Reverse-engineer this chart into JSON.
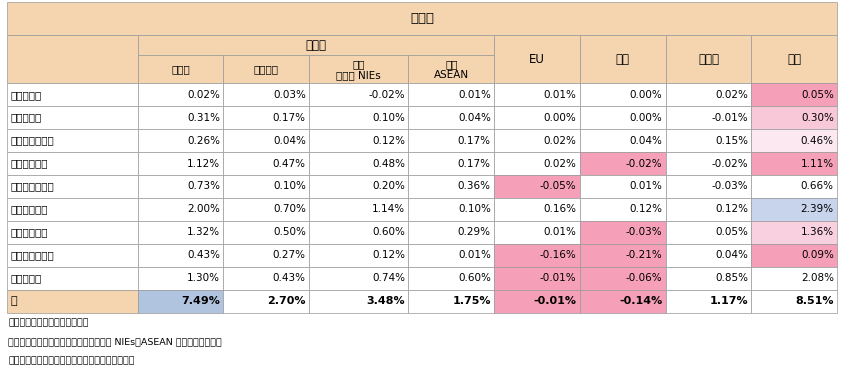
{
  "title": "寄与度",
  "rows": [
    [
      "１．食料品",
      "0.02%",
      "0.03%",
      "-0.02%",
      "0.01%",
      "0.01%",
      "0.00%",
      "0.02%",
      "0.05%"
    ],
    [
      "２．原料品",
      "0.31%",
      "0.17%",
      "0.10%",
      "0.04%",
      "0.00%",
      "0.00%",
      "-0.01%",
      "0.30%"
    ],
    [
      "３．鉱物性燃料",
      "0.26%",
      "0.04%",
      "0.12%",
      "0.17%",
      "0.02%",
      "0.04%",
      "0.15%",
      "0.46%"
    ],
    [
      "４．化学製品",
      "1.12%",
      "0.47%",
      "0.48%",
      "0.17%",
      "0.02%",
      "-0.02%",
      "-0.02%",
      "1.11%"
    ],
    [
      "５．原料別製品",
      "0.73%",
      "0.10%",
      "0.20%",
      "0.36%",
      "-0.05%",
      "0.01%",
      "-0.03%",
      "0.66%"
    ],
    [
      "６．一般機械",
      "2.00%",
      "0.70%",
      "1.14%",
      "0.10%",
      "0.16%",
      "0.12%",
      "0.12%",
      "2.39%"
    ],
    [
      "７．電気機器",
      "1.32%",
      "0.50%",
      "0.60%",
      "0.29%",
      "0.01%",
      "-0.03%",
      "0.05%",
      "1.36%"
    ],
    [
      "８．輸送用機器",
      "0.43%",
      "0.27%",
      "0.12%",
      "0.01%",
      "-0.16%",
      "-0.21%",
      "0.04%",
      "0.09%"
    ],
    [
      "９．その他",
      "1.30%",
      "0.43%",
      "0.74%",
      "0.60%",
      "-0.01%",
      "-0.06%",
      "0.85%",
      "2.08%"
    ],
    [
      "計",
      "7.49%",
      "2.70%",
      "3.48%",
      "1.75%",
      "-0.01%",
      "-0.14%",
      "1.17%",
      "8.51%"
    ]
  ],
  "col_headers": [
    "アジア",
    "うち中国",
    "うち\nアジア NIEs",
    "うち\nASEAN",
    "EU",
    "米国",
    "その他",
    "世界"
  ],
  "footnotes": [
    "備考：１．伸び率は対前年比。",
    "　　　２．「シンガポール」は、アジア NIEs、ASEAN 双方に含まれる。",
    "資料：財務省「貳易統計」から経済産業省作成。"
  ],
  "header_bg": "#F5D5B0",
  "white": "#FFFFFF",
  "pink_neg": "#F5A0B8",
  "world_colors": [
    "#F5A0B8",
    "#F8C8D8",
    "#FCE8F0",
    "#F5A0B8",
    "#FFFFFF",
    "#C8D4EC",
    "#F8D0E0",
    "#F5A0B8",
    "#FFFFFF",
    "#FFFFFF"
  ],
  "eu_pink_rows": [
    4,
    7,
    8,
    9
  ],
  "usd_pink_rows": [
    3,
    6,
    7,
    8,
    9
  ],
  "total_asia_bg": "#B0C4E0",
  "col_rel_widths": [
    1.45,
    0.95,
    0.95,
    1.1,
    0.95,
    0.95,
    0.95,
    0.95,
    0.95
  ]
}
